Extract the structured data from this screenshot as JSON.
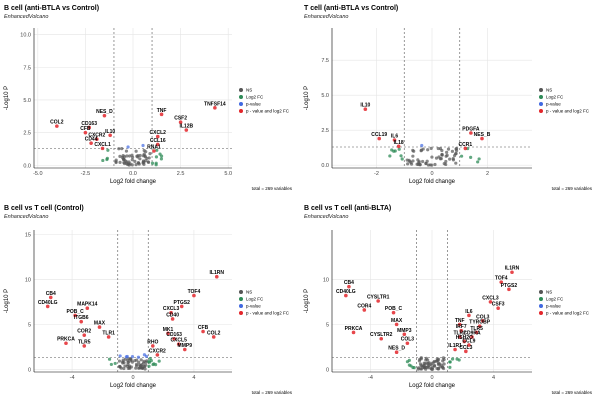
{
  "chart_data": [
    {
      "type": "scatter",
      "title": "B cell (anti-BTLA vs Control)",
      "subtitle": "EnhancedVolcano",
      "xlabel": "Log2 fold change",
      "ylabel": "-Log10 P",
      "xlim": [
        -5.2,
        5.2
      ],
      "ylim": [
        -0.2,
        10.5
      ],
      "xticks": [
        -5.0,
        -2.5,
        0.0,
        2.5,
        5.0
      ],
      "xtick_labels": [
        "-5.0",
        "-2.5",
        "0.0",
        "2.5",
        "5.0"
      ],
      "yticks": [
        0,
        2.5,
        5,
        7.5,
        10
      ],
      "ytick_labels": [
        "0.0",
        "2.5",
        "5.0",
        "7.5",
        "10.0"
      ],
      "fc_cutoff": 1,
      "p_cutoff_y": 1.3,
      "caption": "total = 269 variables",
      "grid": true,
      "legend_position": "right",
      "legend": [
        "NS",
        "Log2 FC",
        "p-value",
        "p - value and log2 FC"
      ],
      "points": [
        {
          "x": 4.3,
          "y": 4.4,
          "label": "TNFSF14",
          "cat": "sig"
        },
        {
          "x": 1.5,
          "y": 3.9,
          "label": "TNF",
          "cat": "sig"
        },
        {
          "x": 2.5,
          "y": 3.3,
          "label": "CSF2",
          "cat": "sig"
        },
        {
          "x": 2.8,
          "y": 2.7,
          "label": "IL12B",
          "cat": "sig"
        },
        {
          "x": 1.3,
          "y": 2.2,
          "label": "CXCL2",
          "cat": "sig"
        },
        {
          "x": 1.3,
          "y": 1.6,
          "label": "CCL16",
          "cat": "sig"
        },
        {
          "x": 1.1,
          "y": 1.1,
          "label": "RNA1",
          "cat": "sig"
        },
        {
          "x": -1.5,
          "y": 3.8,
          "label": "NES_D",
          "cat": "sig"
        },
        {
          "x": -4.0,
          "y": 3.0,
          "label": "COL2",
          "cat": "sig"
        },
        {
          "x": -2.3,
          "y": 2.9,
          "label": "CD163",
          "cat": "sig"
        },
        {
          "x": -2.5,
          "y": 2.5,
          "label": "CFB",
          "cat": "sig"
        },
        {
          "x": -1.2,
          "y": 2.3,
          "label": "IL10",
          "cat": "sig"
        },
        {
          "x": -1.9,
          "y": 2.0,
          "label": "CXCR2",
          "cat": "sig"
        },
        {
          "x": -2.2,
          "y": 1.7,
          "label": "CD44",
          "cat": "sig"
        },
        {
          "x": -1.6,
          "y": 1.3,
          "label": "CXCL1",
          "cat": "sig"
        }
      ]
    },
    {
      "type": "scatter",
      "title": "T cell (anti-BTLA vs Control)",
      "subtitle": "EnhancedVolcano",
      "xlabel": "Log2 fold change",
      "ylabel": "-Log10 P",
      "xlim": [
        -3.6,
        3.6
      ],
      "ylim": [
        -0.2,
        9.8
      ],
      "xticks": [
        -2,
        0,
        2
      ],
      "xtick_labels": [
        "-2",
        "0",
        "2"
      ],
      "yticks": [
        0.0,
        2.5,
        5.0,
        7.5
      ],
      "ytick_labels": [
        "0.0",
        "2.5",
        "5.0",
        "7.5"
      ],
      "fc_cutoff": 1,
      "p_cutoff_y": 1.3,
      "caption": "total = 269 variables",
      "grid": true,
      "legend_position": "right",
      "legend": [
        "NS",
        "Log2 FC",
        "p-value",
        "p - value and log2 FC"
      ],
      "points": [
        {
          "x": -2.4,
          "y": 4.0,
          "label": "IL10",
          "cat": "sig"
        },
        {
          "x": -1.9,
          "y": 1.9,
          "label": "CCL19",
          "cat": "sig"
        },
        {
          "x": -1.35,
          "y": 1.8,
          "label": "IL6",
          "cat": "sig"
        },
        {
          "x": -1.2,
          "y": 1.35,
          "label": "IL18",
          "cat": "sig"
        },
        {
          "x": 1.4,
          "y": 2.3,
          "label": "PDGFA",
          "cat": "sig"
        },
        {
          "x": 1.8,
          "y": 1.9,
          "label": "NES_B",
          "cat": "sig"
        },
        {
          "x": 1.2,
          "y": 1.2,
          "label": "CCR1",
          "cat": "sig"
        }
      ]
    },
    {
      "type": "scatter",
      "title": "B cell vs T cell (Control)",
      "subtitle": "EnhancedVolcano",
      "xlabel": "Log2 fold change",
      "ylabel": "-Log10 P",
      "xlim": [
        -6.5,
        6.5
      ],
      "ylim": [
        -0.3,
        15.5
      ],
      "xticks": [
        -4,
        0,
        4
      ],
      "xtick_labels": [
        "-4",
        "0",
        "4"
      ],
      "yticks": [
        0,
        5,
        10,
        15
      ],
      "ytick_labels": [
        "0",
        "5",
        "10",
        "15"
      ],
      "fc_cutoff": 1,
      "p_cutoff_y": 1.3,
      "caption": "total = 269 variables",
      "grid": true,
      "legend_position": "right",
      "legend": [
        "NS",
        "Log2 FC",
        "p-value",
        "p - value and log2 FC"
      ],
      "points": [
        {
          "x": 5.5,
          "y": 10.3,
          "label": "IL1RN",
          "cat": "sig"
        },
        {
          "x": 4.0,
          "y": 8.2,
          "label": "TOF4",
          "cat": "sig"
        },
        {
          "x": 3.2,
          "y": 7.0,
          "label": "PTGS2",
          "cat": "sig"
        },
        {
          "x": 2.5,
          "y": 6.3,
          "label": "CXCL3",
          "cat": "sig"
        },
        {
          "x": 2.6,
          "y": 5.6,
          "label": "CD40",
          "cat": "sig"
        },
        {
          "x": 4.6,
          "y": 4.2,
          "label": "CFB",
          "cat": "sig"
        },
        {
          "x": 5.3,
          "y": 3.6,
          "label": "COL2",
          "cat": "sig"
        },
        {
          "x": 2.3,
          "y": 4.0,
          "label": "MK1",
          "cat": "sig"
        },
        {
          "x": 2.7,
          "y": 3.4,
          "label": "CD163",
          "cat": "sig"
        },
        {
          "x": 3.0,
          "y": 2.8,
          "label": "CXCL5",
          "cat": "sig"
        },
        {
          "x": 3.4,
          "y": 2.2,
          "label": "MMP9",
          "cat": "sig"
        },
        {
          "x": -5.4,
          "y": 8.0,
          "label": "CB4",
          "cat": "sig"
        },
        {
          "x": -5.6,
          "y": 7.0,
          "label": "CD40LG",
          "cat": "sig"
        },
        {
          "x": -3.0,
          "y": 6.8,
          "label": "MAPK14",
          "cat": "sig"
        },
        {
          "x": -3.8,
          "y": 6.0,
          "label": "POB_C",
          "cat": "sig"
        },
        {
          "x": -3.4,
          "y": 5.3,
          "label": "ITGB6",
          "cat": "sig"
        },
        {
          "x": -2.2,
          "y": 4.7,
          "label": "MAX",
          "cat": "sig"
        },
        {
          "x": -3.2,
          "y": 3.8,
          "label": "COR2",
          "cat": "sig"
        },
        {
          "x": -4.4,
          "y": 2.9,
          "label": "PRKCA",
          "cat": "sig"
        },
        {
          "x": -3.2,
          "y": 2.6,
          "label": "TLR5",
          "cat": "sig"
        },
        {
          "x": -1.6,
          "y": 3.6,
          "label": "TLR1",
          "cat": "sig"
        },
        {
          "x": 1.3,
          "y": 2.6,
          "label": "RHO",
          "cat": "sig"
        },
        {
          "x": 1.6,
          "y": 1.6,
          "label": "CXCR2",
          "cat": "sig"
        }
      ]
    },
    {
      "type": "scatter",
      "title": "B cell vs T cell (anti-BLTA)",
      "subtitle": "EnhancedVolcano",
      "xlabel": "Log2 fold change",
      "ylabel": "-Log10 P",
      "xlim": [
        -6.5,
        6.5
      ],
      "ylim": [
        -0.3,
        15.5
      ],
      "xticks": [
        -4,
        0,
        4
      ],
      "xtick_labels": [
        "-4",
        "0",
        "4"
      ],
      "yticks": [
        0,
        5,
        10
      ],
      "ytick_labels": [
        "0",
        "5",
        "10"
      ],
      "fc_cutoff": 1,
      "p_cutoff_y": 1.3,
      "caption": "total = 269 variables",
      "grid": true,
      "legend_position": "right",
      "legend": [
        "NS",
        "Log2 FC",
        "p-value",
        "p - value and log2 FC"
      ],
      "points": [
        {
          "x": 5.2,
          "y": 10.8,
          "label": "IL1RN",
          "cat": "sig"
        },
        {
          "x": 4.5,
          "y": 9.7,
          "label": "TOF4",
          "cat": "sig"
        },
        {
          "x": 5.0,
          "y": 8.9,
          "label": "PTGS2",
          "cat": "sig"
        },
        {
          "x": 3.8,
          "y": 7.5,
          "label": "CXCL3",
          "cat": "sig"
        },
        {
          "x": 4.3,
          "y": 6.8,
          "label": "CSF3",
          "cat": "sig"
        },
        {
          "x": 2.4,
          "y": 6.0,
          "label": "IL6",
          "cat": "sig"
        },
        {
          "x": 3.3,
          "y": 5.4,
          "label": "COL3",
          "cat": "sig"
        },
        {
          "x": 3.1,
          "y": 4.8,
          "label": "TYROBP",
          "cat": "sig"
        },
        {
          "x": 2.9,
          "y": 4.1,
          "label": "TLR5",
          "cat": "sig"
        },
        {
          "x": 2.6,
          "y": 3.6,
          "label": "CD9RA",
          "cat": "sig"
        },
        {
          "x": 1.8,
          "y": 5.0,
          "label": "TNF",
          "cat": "sig"
        },
        {
          "x": 1.9,
          "y": 4.3,
          "label": "IRF7",
          "cat": "sig"
        },
        {
          "x": 1.8,
          "y": 3.6,
          "label": "TLR2",
          "cat": "sig"
        },
        {
          "x": 2.1,
          "y": 3.1,
          "label": "HSH2O",
          "cat": "sig"
        },
        {
          "x": 2.4,
          "y": 2.7,
          "label": "CCL9",
          "cat": "sig"
        },
        {
          "x": 1.5,
          "y": 2.2,
          "label": "IL1R1",
          "cat": "sig"
        },
        {
          "x": 2.2,
          "y": 2.0,
          "label": "CCL3",
          "cat": "sig"
        },
        {
          "x": -5.4,
          "y": 9.2,
          "label": "CB4",
          "cat": "sig"
        },
        {
          "x": -5.6,
          "y": 8.2,
          "label": "CD40LG",
          "cat": "sig"
        },
        {
          "x": -3.5,
          "y": 7.6,
          "label": "CYSLTR1",
          "cat": "sig"
        },
        {
          "x": -4.4,
          "y": 6.6,
          "label": "COR4",
          "cat": "sig"
        },
        {
          "x": -2.5,
          "y": 6.3,
          "label": "POB_C",
          "cat": "sig"
        },
        {
          "x": -2.3,
          "y": 5.0,
          "label": "MAX",
          "cat": "sig"
        },
        {
          "x": -5.1,
          "y": 4.1,
          "label": "PRKCA",
          "cat": "sig"
        },
        {
          "x": -3.3,
          "y": 3.4,
          "label": "CYSLTR2",
          "cat": "sig"
        },
        {
          "x": -1.8,
          "y": 3.9,
          "label": "MMP3",
          "cat": "sig"
        },
        {
          "x": -1.6,
          "y": 2.9,
          "label": "COL3",
          "cat": "sig"
        },
        {
          "x": -2.3,
          "y": 1.9,
          "label": "NES_D",
          "cat": "sig"
        }
      ]
    }
  ]
}
